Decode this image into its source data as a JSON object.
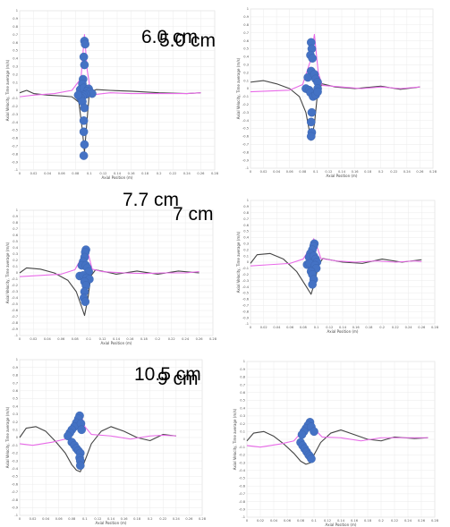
{
  "chart_data": [
    {
      "type": "line",
      "panel_label": "5.0 cm",
      "xlabel": "Axial Position (m)",
      "ylabel": "Axial Velocity, Time average (m/s)",
      "xlim": [
        0,
        0.28
      ],
      "ylim": [
        -1,
        1
      ],
      "x_ticks": [
        "0",
        "0.02",
        "0.04",
        "0.06",
        "0.08",
        "0.1",
        "0.12",
        "0.14",
        "0.16",
        "0.18",
        "0.2",
        "0.22",
        "0.24",
        "0.26",
        "0.28"
      ],
      "y_ticks": [
        "1",
        "0.9",
        "0.8",
        "0.7",
        "0.6",
        "0.5",
        "0.4",
        "0.3",
        "0.2",
        "0.1",
        "0",
        "-0.1",
        "-0.2",
        "-0.3",
        "-0.4",
        "-0.5",
        "-0.6",
        "-0.7",
        "-0.8",
        "-0.9",
        "-1"
      ],
      "series": [
        {
          "color": "#444444",
          "x": [
            0,
            0.01,
            0.02,
            0.04,
            0.06,
            0.075,
            0.085,
            0.09,
            0.093,
            0.096,
            0.1,
            0.11,
            0.13,
            0.16,
            0.2,
            0.24,
            0.26
          ],
          "y": [
            -0.03,
            0.0,
            -0.04,
            -0.06,
            -0.07,
            -0.08,
            -0.15,
            -0.5,
            -0.78,
            -0.45,
            -0.02,
            0.01,
            0.0,
            -0.01,
            -0.03,
            -0.04,
            -0.03
          ]
        },
        {
          "color": "#e86ae8",
          "x": [
            0,
            0.02,
            0.05,
            0.075,
            0.088,
            0.093,
            0.097,
            0.101,
            0.11,
            0.13,
            0.16,
            0.2,
            0.24,
            0.26
          ],
          "y": [
            -0.08,
            -0.06,
            -0.04,
            0.0,
            0.15,
            0.7,
            0.25,
            0.03,
            -0.05,
            -0.03,
            -0.04,
            -0.04,
            -0.04,
            -0.03
          ]
        },
        {
          "color": "#4472c4",
          "marker": "dot",
          "x": [
            0.093,
            0.094,
            0.092,
            0.093,
            0.091,
            0.09,
            0.087,
            0.092,
            0.099,
            0.097,
            0.101,
            0.104,
            0.095,
            0.092,
            0.09,
            0.087,
            0.084,
            0.09,
            0.093,
            0.092,
            0.092,
            0.093,
            0.092
          ],
          "y": [
            0.62,
            0.58,
            0.42,
            0.32,
            0.14,
            0.08,
            0.01,
            0.03,
            0.02,
            -0.01,
            -0.02,
            -0.04,
            -0.05,
            -0.06,
            -0.08,
            -0.09,
            -0.06,
            -0.14,
            -0.22,
            -0.38,
            -0.52,
            -0.68,
            -0.82
          ]
        }
      ]
    },
    {
      "type": "line",
      "panel_label": "6.0 cm",
      "xlabel": "Axial Position (m)",
      "ylabel": "Axial Velocity, Time average (m/s)",
      "xlim": [
        0,
        0.28
      ],
      "ylim": [
        -1,
        1
      ],
      "x_ticks": [
        "0",
        "0.02",
        "0.04",
        "0.06",
        "0.08",
        "0.1",
        "0.12",
        "0.14",
        "0.16",
        "0.18",
        "0.2",
        "0.22",
        "0.24",
        "0.26",
        "0.28"
      ],
      "y_ticks": [
        "1",
        "0.9",
        "0.8",
        "0.7",
        "0.6",
        "0.5",
        "0.4",
        "0.3",
        "0.2",
        "0.1",
        "0",
        "-0.1",
        "-0.2",
        "-0.3",
        "-0.4",
        "-0.5",
        "-0.6",
        "-0.7",
        "-0.8",
        "-0.9",
        "-1"
      ],
      "series": [
        {
          "color": "#444444",
          "x": [
            0,
            0.02,
            0.04,
            0.06,
            0.075,
            0.085,
            0.093,
            0.098,
            0.103,
            0.11,
            0.13,
            0.16,
            0.2,
            0.23,
            0.26
          ],
          "y": [
            0.08,
            0.1,
            0.06,
            0.0,
            -0.1,
            -0.3,
            -0.65,
            -0.45,
            -0.05,
            0.06,
            0.02,
            0.0,
            0.03,
            -0.01,
            0.02
          ]
        },
        {
          "color": "#e86ae8",
          "x": [
            0,
            0.03,
            0.06,
            0.08,
            0.092,
            0.098,
            0.104,
            0.11,
            0.14,
            0.17,
            0.2,
            0.23,
            0.26
          ],
          "y": [
            -0.04,
            -0.03,
            -0.02,
            0.05,
            0.35,
            0.68,
            0.2,
            0.04,
            0.02,
            0.0,
            0.02,
            0.0,
            0.02
          ]
        },
        {
          "color": "#4472c4",
          "marker": "dot",
          "x": [
            0.093,
            0.094,
            0.092,
            0.095,
            0.093,
            0.088,
            0.098,
            0.1,
            0.103,
            0.103,
            0.085,
            0.09,
            0.092,
            0.096,
            0.1,
            0.103,
            0.094,
            0.093,
            0.094,
            0.093
          ],
          "y": [
            0.58,
            0.5,
            0.42,
            0.38,
            0.22,
            0.14,
            0.18,
            0.12,
            0.08,
            0.0,
            0.0,
            -0.02,
            -0.05,
            -0.1,
            -0.08,
            -0.04,
            -0.3,
            -0.42,
            -0.55,
            -0.6
          ]
        }
      ]
    },
    {
      "type": "line",
      "panel_label": "7 cm",
      "xlabel": "Axial Position (m)",
      "ylabel": "Axial Velocity, Time average (m/s)",
      "xlim": [
        0,
        0.28
      ],
      "ylim": [
        -1,
        1
      ],
      "x_ticks": [
        "0",
        "0.02",
        "0.04",
        "0.06",
        "0.08",
        "0.1",
        "0.12",
        "0.14",
        "0.16",
        "0.18",
        "0.2",
        "0.22",
        "0.24",
        "0.26",
        "0.28"
      ],
      "y_ticks": [
        "1",
        "0.9",
        "0.8",
        "0.7",
        "0.6",
        "0.5",
        "0.4",
        "0.3",
        "0.2",
        "0.1",
        "0",
        "-0.1",
        "-0.2",
        "-0.3",
        "-0.4",
        "-0.5",
        "-0.6",
        "-0.7",
        "-0.8",
        "-0.9",
        "-1"
      ],
      "series": [
        {
          "color": "#444444",
          "x": [
            0,
            0.01,
            0.03,
            0.05,
            0.07,
            0.082,
            0.09,
            0.094,
            0.099,
            0.103,
            0.11,
            0.14,
            0.17,
            0.2,
            0.23,
            0.26
          ],
          "y": [
            0.0,
            0.08,
            0.06,
            0.0,
            -0.12,
            -0.3,
            -0.55,
            -0.68,
            -0.4,
            -0.05,
            0.05,
            -0.02,
            0.03,
            -0.02,
            0.03,
            0.0
          ]
        },
        {
          "color": "#e86ae8",
          "x": [
            0,
            0.03,
            0.06,
            0.08,
            0.09,
            0.095,
            0.1,
            0.105,
            0.12,
            0.15,
            0.18,
            0.21,
            0.24,
            0.26
          ],
          "y": [
            -0.06,
            -0.04,
            -0.02,
            0.05,
            0.25,
            0.42,
            0.28,
            0.06,
            0.02,
            0.0,
            -0.01,
            0.0,
            0.0,
            0.02
          ]
        },
        {
          "color": "#4472c4",
          "marker": "dot",
          "x": [
            0.096,
            0.095,
            0.094,
            0.092,
            0.09,
            0.096,
            0.098,
            0.1,
            0.087,
            0.092,
            0.097,
            0.101,
            0.094,
            0.096,
            0.094,
            0.093,
            0.095
          ],
          "y": [
            0.37,
            0.33,
            0.25,
            0.18,
            0.12,
            0.12,
            0.08,
            0.02,
            -0.05,
            -0.04,
            -0.08,
            -0.1,
            -0.14,
            -0.2,
            -0.3,
            -0.4,
            -0.46
          ]
        }
      ]
    },
    {
      "type": "line",
      "panel_label": "7.7 cm",
      "xlabel": "Axial Position (m)",
      "ylabel": "Axial Velocity, Time average (m/s)",
      "xlim": [
        0,
        0.28
      ],
      "ylim": [
        -1,
        1
      ],
      "x_ticks": [
        "0",
        "0.02",
        "0.04",
        "0.06",
        "0.08",
        "0.1",
        "0.12",
        "0.14",
        "0.16",
        "0.18",
        "0.2",
        "0.22",
        "0.24",
        "0.26",
        "0.28"
      ],
      "y_ticks": [
        "1",
        "0.9",
        "0.8",
        "0.7",
        "0.6",
        "0.5",
        "0.4",
        "0.3",
        "0.2",
        "0.1",
        "0",
        "-0.1",
        "-0.2",
        "-0.3",
        "-0.4",
        "-0.5",
        "-0.6",
        "-0.7",
        "-0.8",
        "-0.9",
        "-1"
      ],
      "series": [
        {
          "color": "#444444",
          "x": [
            0,
            0.01,
            0.03,
            0.05,
            0.07,
            0.085,
            0.092,
            0.097,
            0.103,
            0.11,
            0.14,
            0.17,
            0.2,
            0.23,
            0.26
          ],
          "y": [
            -0.02,
            0.12,
            0.14,
            0.05,
            -0.15,
            -0.4,
            -0.52,
            -0.35,
            -0.05,
            0.06,
            0.0,
            -0.02,
            0.05,
            0.0,
            0.04
          ]
        },
        {
          "color": "#e86ae8",
          "x": [
            0,
            0.03,
            0.06,
            0.08,
            0.09,
            0.096,
            0.101,
            0.107,
            0.13,
            0.16,
            0.19,
            0.22,
            0.25,
            0.26
          ],
          "y": [
            -0.06,
            -0.04,
            -0.02,
            0.05,
            0.22,
            0.38,
            0.25,
            0.06,
            0.02,
            0.0,
            0.02,
            0.0,
            0.02,
            0.01
          ]
        },
        {
          "color": "#4472c4",
          "marker": "dot",
          "x": [
            0.097,
            0.096,
            0.094,
            0.091,
            0.089,
            0.096,
            0.099,
            0.101,
            0.086,
            0.09,
            0.098,
            0.1,
            0.092,
            0.094,
            0.096,
            0.094
          ],
          "y": [
            0.3,
            0.26,
            0.2,
            0.14,
            0.08,
            0.1,
            0.05,
            0.0,
            -0.04,
            -0.02,
            -0.05,
            -0.1,
            -0.15,
            -0.2,
            -0.28,
            -0.36
          ]
        }
      ]
    },
    {
      "type": "line",
      "panel_label": "9 cm",
      "xlabel": "Axial Position (m)",
      "ylabel": "Axial Velocity, Time average (m/s)",
      "xlim": [
        0,
        0.28
      ],
      "ylim": [
        -1,
        1
      ],
      "x_ticks": [
        "0",
        "0.02",
        "0.04",
        "0.06",
        "0.08",
        "0.1",
        "0.12",
        "0.14",
        "0.16",
        "0.18",
        "0.2",
        "0.22",
        "0.24",
        "0.26",
        "0.28"
      ],
      "y_ticks": [
        "1",
        "0.9",
        "0.8",
        "0.7",
        "0.6",
        "0.5",
        "0.4",
        "0.3",
        "0.2",
        "0.1",
        "0",
        "-0.1",
        "-0.2",
        "-0.3",
        "-0.4",
        "-0.5",
        "-0.6",
        "-0.7",
        "-0.8",
        "-0.9",
        "-1"
      ],
      "series": [
        {
          "color": "#444444",
          "x": [
            0,
            0.01,
            0.025,
            0.04,
            0.055,
            0.07,
            0.08,
            0.087,
            0.093,
            0.1,
            0.11,
            0.125,
            0.14,
            0.16,
            0.18,
            0.2,
            0.22,
            0.24
          ],
          "y": [
            0.0,
            0.12,
            0.14,
            0.08,
            -0.05,
            -0.2,
            -0.35,
            -0.42,
            -0.44,
            -0.3,
            -0.08,
            0.08,
            0.14,
            0.08,
            0.0,
            -0.04,
            0.04,
            0.02
          ]
        },
        {
          "color": "#e86ae8",
          "x": [
            0,
            0.02,
            0.05,
            0.07,
            0.08,
            0.088,
            0.093,
            0.1,
            0.11,
            0.14,
            0.17,
            0.2,
            0.22,
            0.24
          ],
          "y": [
            -0.08,
            -0.1,
            -0.06,
            -0.02,
            0.12,
            0.26,
            0.32,
            0.14,
            0.04,
            0.02,
            -0.02,
            0.02,
            0.03,
            0.02
          ]
        },
        {
          "color": "#4472c4",
          "marker": "dot",
          "x": [
            0.092,
            0.09,
            0.087,
            0.084,
            0.08,
            0.077,
            0.074,
            0.094,
            0.095,
            0.08,
            0.084,
            0.087,
            0.09,
            0.093,
            0.092,
            0.093,
            0.093
          ],
          "y": [
            0.28,
            0.24,
            0.19,
            0.14,
            0.1,
            0.06,
            0.02,
            0.18,
            0.1,
            -0.06,
            -0.1,
            -0.14,
            -0.17,
            -0.2,
            -0.26,
            -0.3,
            -0.36
          ]
        }
      ]
    },
    {
      "type": "line",
      "panel_label": "10.5 cm",
      "xlabel": "Axial Position (m)",
      "ylabel": "Axial Velocity, Time average (m/s)",
      "xlim": [
        0,
        0.28
      ],
      "ylim": [
        -1,
        1
      ],
      "x_ticks": [
        "0",
        "0.02",
        "0.04",
        "0.06",
        "0.08",
        "0.1",
        "0.12",
        "0.14",
        "0.16",
        "0.18",
        "0.2",
        "0.22",
        "0.24",
        "0.26",
        "0.28"
      ],
      "y_ticks": [
        "1",
        "0.9",
        "0.8",
        "0.7",
        "0.6",
        "0.5",
        "0.4",
        "0.3",
        "0.2",
        "0.1",
        "0",
        "-0.1",
        "-0.2",
        "-0.3",
        "-0.4",
        "-0.5",
        "-0.6",
        "-0.7",
        "-0.8",
        "-0.9",
        "-1"
      ],
      "series": [
        {
          "color": "#444444",
          "x": [
            0,
            0.01,
            0.025,
            0.04,
            0.055,
            0.07,
            0.08,
            0.088,
            0.095,
            0.1,
            0.11,
            0.125,
            0.14,
            0.16,
            0.18,
            0.2,
            0.22,
            0.25,
            0.27
          ],
          "y": [
            -0.02,
            0.08,
            0.1,
            0.04,
            -0.06,
            -0.18,
            -0.28,
            -0.32,
            -0.3,
            -0.2,
            -0.04,
            0.08,
            0.12,
            0.06,
            0.0,
            -0.02,
            0.03,
            0.01,
            0.02
          ]
        },
        {
          "color": "#e86ae8",
          "x": [
            0,
            0.02,
            0.05,
            0.07,
            0.082,
            0.09,
            0.096,
            0.102,
            0.112,
            0.14,
            0.17,
            0.2,
            0.23,
            0.27
          ],
          "y": [
            -0.08,
            -0.1,
            -0.06,
            -0.02,
            0.1,
            0.2,
            0.24,
            0.12,
            0.03,
            0.02,
            -0.02,
            0.02,
            0.02,
            0.02
          ]
        },
        {
          "color": "#4472c4",
          "marker": "dot",
          "x": [
            0.094,
            0.091,
            0.088,
            0.085,
            0.082,
            0.096,
            0.1,
            0.08,
            0.083,
            0.086,
            0.089,
            0.092,
            0.094,
            0.096
          ],
          "y": [
            0.22,
            0.18,
            0.14,
            0.1,
            0.06,
            0.16,
            0.1,
            -0.04,
            -0.08,
            -0.12,
            -0.16,
            -0.2,
            -0.22,
            -0.25
          ]
        }
      ]
    }
  ]
}
